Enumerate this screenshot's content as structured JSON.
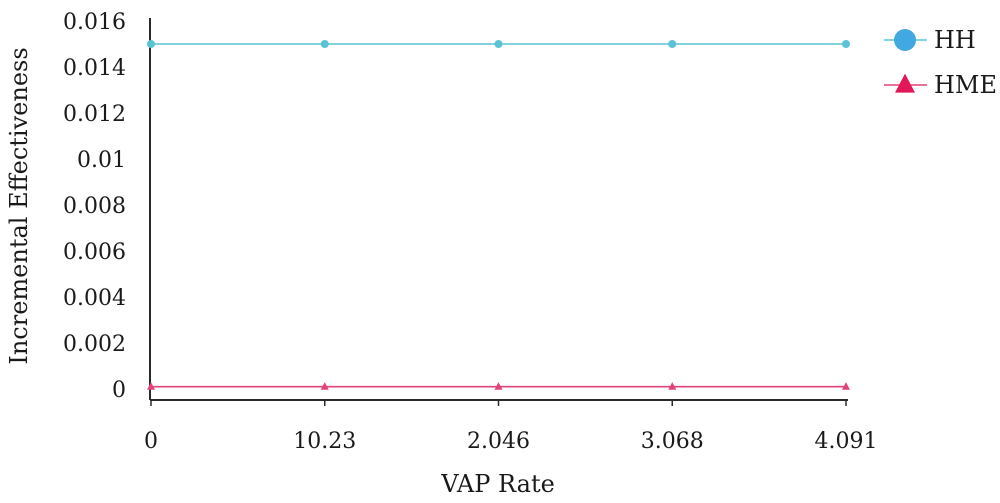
{
  "chart_data": {
    "type": "line",
    "title": "",
    "xlabel": "VAP Rate",
    "ylabel": "Incremental Effectiveness",
    "categories": [
      "0",
      "10.23",
      "2.046",
      "3.068",
      "4.091"
    ],
    "ylim": [
      0,
      0.016
    ],
    "yticks": [
      "0",
      "0.002",
      "0.004",
      "0.006",
      "0.008",
      "0.01",
      "0.012",
      "0.014",
      "0.016"
    ],
    "grid": false,
    "legend_position": "top-right",
    "series": [
      {
        "name": "HH",
        "values": [
          0.015,
          0.015,
          0.015,
          0.015,
          0.015
        ],
        "color": "#5bc3d6",
        "marker": "circle",
        "legend_marker_color": "#3fa9e0"
      },
      {
        "name": "HME",
        "values": [
          0.0001,
          0.0001,
          0.0001,
          0.0001,
          0.0001
        ],
        "color": "#e0447a",
        "marker": "triangle",
        "legend_marker_color": "#e0185a"
      }
    ]
  }
}
